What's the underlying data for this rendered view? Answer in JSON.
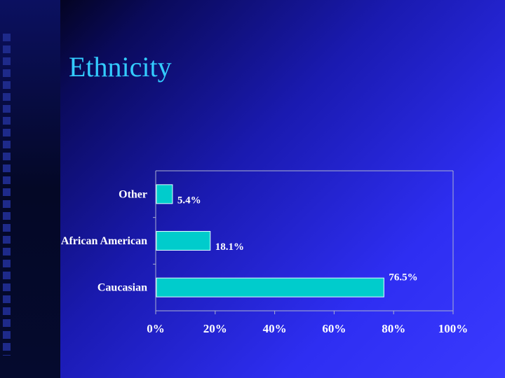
{
  "slide": {
    "title": "Ethnicity"
  },
  "colors": {
    "bar": "#00cccc",
    "bar_edge": "#e0ffff",
    "axis": "#aab0d0",
    "title": "#33ccff"
  },
  "chart_data": {
    "type": "bar",
    "orientation": "horizontal",
    "categories": [
      "Other",
      "African American",
      "Caucasian"
    ],
    "values": [
      5.4,
      18.1,
      76.5
    ],
    "data_labels": [
      "5.4%",
      "18.1%",
      "76.5%"
    ],
    "xlim": [
      0,
      100
    ],
    "xticks": [
      "0%",
      "20%",
      "40%",
      "60%",
      "80%",
      "100%"
    ],
    "title": "",
    "xlabel": "",
    "ylabel": "",
    "grid": false,
    "legend": "none"
  }
}
